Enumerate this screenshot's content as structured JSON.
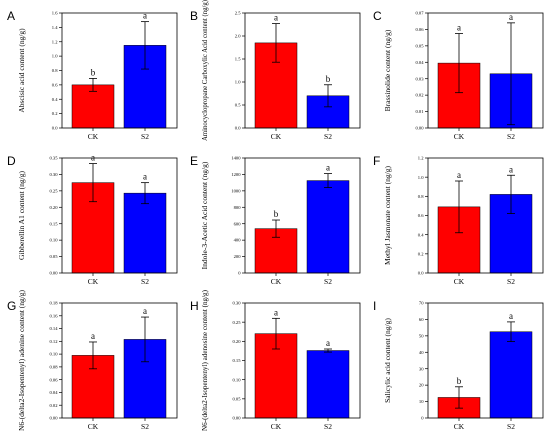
{
  "colors": {
    "CK": "#ff0000",
    "S2": "#0000ff",
    "axis": "#000000"
  },
  "chart_data": [
    {
      "type": "bar",
      "panel": "A",
      "ylabel": "Abscisic acid content (ng/g)",
      "categories": [
        "CK",
        "S2"
      ],
      "values": [
        0.6,
        1.15
      ],
      "errors": [
        0.09,
        0.33
      ],
      "letters": [
        "b",
        "a"
      ],
      "ylim": [
        0,
        1.6
      ],
      "ticks": [
        "0.0",
        "0.2",
        "0.4",
        "0.6",
        "0.8",
        "1.0",
        "1.2",
        "1.4",
        "1.6"
      ]
    },
    {
      "type": "bar",
      "panel": "B",
      "ylabel": "Aminocyclopropane Carboxylic Acid content (ng/g)",
      "categories": [
        "CK",
        "S2"
      ],
      "values": [
        1.85,
        0.7
      ],
      "errors": [
        0.42,
        0.24
      ],
      "letters": [
        "a",
        "b"
      ],
      "ylim": [
        0,
        2.5
      ],
      "ticks": [
        "0.0",
        "0.5",
        "1.0",
        "1.5",
        "2.0",
        "2.5"
      ]
    },
    {
      "type": "bar",
      "panel": "C",
      "ylabel": "Brassinolide content (ng/g)",
      "categories": [
        "CK",
        "S2"
      ],
      "values": [
        0.0395,
        0.033
      ],
      "errors": [
        0.018,
        0.031
      ],
      "letters": [
        "a",
        "a"
      ],
      "ylim": [
        0,
        0.07
      ],
      "ticks": [
        "0.00",
        "0.01",
        "0.02",
        "0.03",
        "0.04",
        "0.05",
        "0.06",
        "0.07"
      ]
    },
    {
      "type": "bar",
      "panel": "D",
      "ylabel": "Gibberellin A1 content (ng/g)",
      "categories": [
        "CK",
        "S2"
      ],
      "values": [
        0.275,
        0.243
      ],
      "errors": [
        0.058,
        0.032
      ],
      "letters": [
        "a",
        "a"
      ],
      "ylim": [
        0,
        0.35
      ],
      "ticks": [
        "0.00",
        "0.05",
        "0.10",
        "0.15",
        "0.20",
        "0.25",
        "0.30",
        "0.35"
      ]
    },
    {
      "type": "bar",
      "panel": "E",
      "ylabel": "Indole-3-Acetic Acid content (ng/g)",
      "categories": [
        "CK",
        "S2"
      ],
      "values": [
        540,
        1125
      ],
      "errors": [
        105,
        85
      ],
      "letters": [
        "b",
        "a"
      ],
      "ylim": [
        0,
        1400
      ],
      "ticks": [
        "0",
        "200",
        "400",
        "600",
        "800",
        "1000",
        "1200",
        "1400"
      ]
    },
    {
      "type": "bar",
      "panel": "F",
      "ylabel": "Methyl Jasmonate content (ng/g)",
      "categories": [
        "CK",
        "S2"
      ],
      "values": [
        0.69,
        0.82
      ],
      "errors": [
        0.27,
        0.2
      ],
      "letters": [
        "a",
        "a"
      ],
      "ylim": [
        0,
        1.2
      ],
      "ticks": [
        "0.0",
        "0.2",
        "0.4",
        "0.6",
        "0.8",
        "1.0",
        "1.2"
      ]
    },
    {
      "type": "bar",
      "panel": "G",
      "ylabel": "N6-(delta2-Isopentenyl) adenine content (ng/g)",
      "categories": [
        "CK",
        "S2"
      ],
      "values": [
        0.098,
        0.123
      ],
      "errors": [
        0.021,
        0.035
      ],
      "letters": [
        "a",
        "a"
      ],
      "ylim": [
        0,
        0.18
      ],
      "ticks": [
        "0.00",
        "0.02",
        "0.04",
        "0.06",
        "0.08",
        "0.10",
        "0.12",
        "0.14",
        "0.16",
        "0.18"
      ]
    },
    {
      "type": "bar",
      "panel": "H",
      "ylabel": "N6-(delta2-Isopentenyl) adenosine content (ng/g)",
      "categories": [
        "CK",
        "S2"
      ],
      "values": [
        0.22,
        0.176
      ],
      "errors": [
        0.04,
        0.004
      ],
      "letters": [
        "a",
        "a"
      ],
      "ylim": [
        0,
        0.3
      ],
      "ticks": [
        "0.00",
        "0.05",
        "0.10",
        "0.15",
        "0.20",
        "0.25",
        "0.30"
      ]
    },
    {
      "type": "bar",
      "panel": "I",
      "ylabel": "Salicylic acid content (ng/g)",
      "categories": [
        "CK",
        "S2"
      ],
      "values": [
        12.5,
        52.5
      ],
      "errors": [
        6.5,
        6.0
      ],
      "letters": [
        "b",
        "a"
      ],
      "ylim": [
        0,
        70
      ],
      "ticks": [
        "0",
        "10",
        "20",
        "30",
        "40",
        "50",
        "60",
        "70"
      ]
    }
  ]
}
